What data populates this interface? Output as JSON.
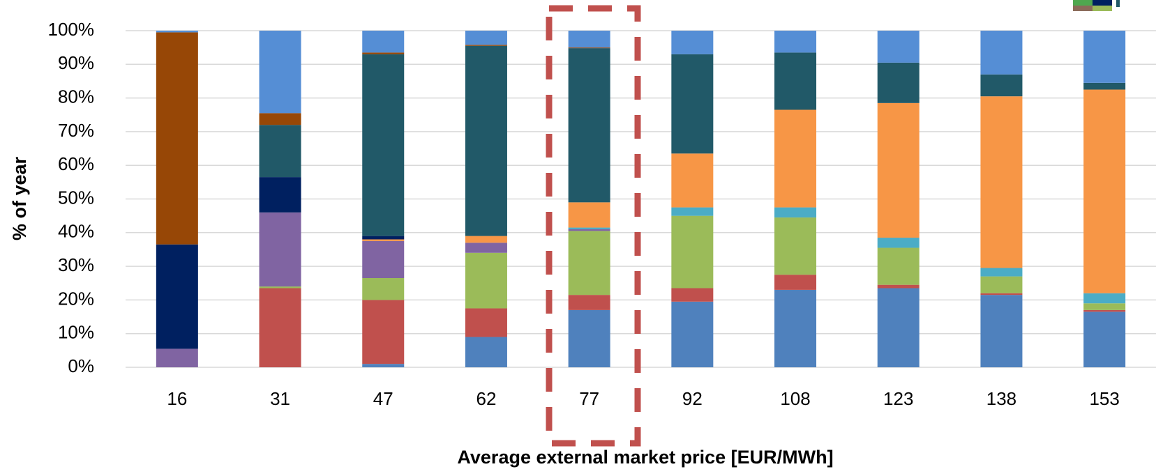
{
  "chart_data": {
    "type": "stacked_bar",
    "categories": [
      "16",
      "31",
      "47",
      "62",
      "77",
      "92",
      "108",
      "123",
      "138",
      "153"
    ],
    "series": [
      {
        "color": "#4f81bd",
        "values": [
          0,
          0,
          1,
          9,
          17,
          19.5,
          23,
          23.5,
          21.5,
          16.5
        ]
      },
      {
        "color": "#c0504d",
        "values": [
          0,
          23.5,
          19,
          8.5,
          4.5,
          4,
          4.5,
          1,
          0.5,
          0.5
        ]
      },
      {
        "color": "#9bbb59",
        "values": [
          0,
          0.5,
          6.5,
          16.5,
          19,
          21.5,
          17,
          11,
          5,
          2
        ]
      },
      {
        "color": "#8064a2",
        "values": [
          5.5,
          22,
          11,
          3,
          0.5,
          0,
          0,
          0,
          0,
          0
        ]
      },
      {
        "color": "#4bacc6",
        "values": [
          0,
          0,
          0,
          0,
          0.5,
          2.5,
          3,
          3,
          2.5,
          3
        ]
      },
      {
        "color": "#f79646",
        "values": [
          0,
          0,
          0.5,
          2,
          7.5,
          16,
          29,
          40,
          51,
          60.5
        ]
      },
      {
        "color": "#002060",
        "values": [
          31,
          10.5,
          1,
          0,
          0,
          0,
          0,
          0,
          0,
          0
        ]
      },
      {
        "color": "#215968",
        "values": [
          0,
          15.5,
          54,
          56.5,
          45.8,
          29.5,
          17,
          12,
          6.5,
          2
        ]
      },
      {
        "color": "#974706",
        "values": [
          63,
          3.5,
          0.5,
          0.3,
          0.2,
          0,
          0,
          0,
          0,
          0
        ]
      },
      {
        "color": "#558ed5",
        "values": [
          0.5,
          24.5,
          6.5,
          4.2,
          5,
          7,
          6.5,
          9.5,
          13,
          15.5
        ]
      }
    ],
    "ylabel": "% of year",
    "xlabel": "Average external market price [EUR/MWh]",
    "ylim": [
      0,
      100
    ],
    "yticks": [
      {
        "value": 0,
        "label": "0%"
      },
      {
        "value": 10,
        "label": "10%"
      },
      {
        "value": 20,
        "label": "20%"
      },
      {
        "value": 30,
        "label": "30%"
      },
      {
        "value": 40,
        "label": "40%"
      },
      {
        "value": 50,
        "label": "50%"
      },
      {
        "value": 60,
        "label": "60%"
      },
      {
        "value": 70,
        "label": "70%"
      },
      {
        "value": 80,
        "label": "80%"
      },
      {
        "value": 90,
        "label": "90%"
      },
      {
        "value": 100,
        "label": "100%"
      }
    ],
    "grid": true
  }
}
